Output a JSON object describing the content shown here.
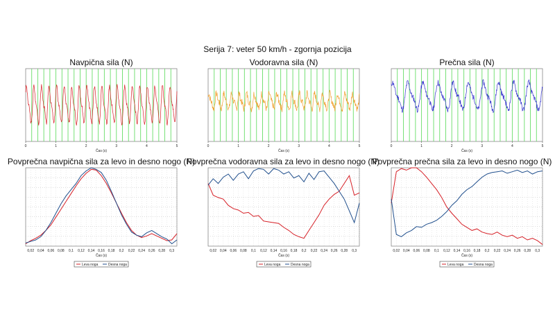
{
  "page": {
    "title": "Serija 7: veter 50 km/h - zgornja pozicija"
  },
  "colors": {
    "red": "#d61f26",
    "orange": "#f0a030",
    "blue": "#3333cc",
    "navy": "#1f4e8c",
    "green_grid": "#66dd66"
  },
  "chart_data": [
    {
      "id": "top1",
      "type": "line",
      "title": "Navpična sila (N)",
      "xlabel": "Čas (s)",
      "xlim": [
        0,
        5
      ],
      "xticks": [
        "0",
        "1",
        "2",
        "3",
        "4",
        "5"
      ],
      "grid": "vertical-green",
      "series": [
        {
          "color": "#d61f26",
          "signal": {
            "offset": 0.5,
            "amp": 0.22,
            "cycles": 20,
            "noise": 0.03,
            "seed": 3
          }
        }
      ]
    },
    {
      "id": "top2",
      "type": "line",
      "title": "Vodoravna sila (N)",
      "xlabel": "Čas (s)",
      "xlim": [
        0,
        5
      ],
      "xticks": [
        "0",
        "1",
        "2",
        "3",
        "4",
        "5"
      ],
      "grid": "vertical-green",
      "series": [
        {
          "color": "#f0a030",
          "signal": {
            "offset": 0.55,
            "amp": 0.09,
            "cycles": 20,
            "noise": 0.05,
            "seed": 7
          }
        }
      ]
    },
    {
      "id": "top3",
      "type": "line",
      "title": "Prečna sila (N)",
      "xlabel": "Čas (s)",
      "xlim": [
        0,
        5
      ],
      "xticks": [
        "0",
        "1",
        "2",
        "3",
        "4",
        "5"
      ],
      "grid": "vertical-green",
      "series": [
        {
          "color": "#3333cc",
          "signal": {
            "offset": 0.62,
            "amp": 0.16,
            "cycles": 10,
            "noise": 0.04,
            "seed": 11
          }
        }
      ]
    },
    {
      "id": "bot1",
      "type": "line",
      "title": "Povprečna navpična sila za levo in desno nogo (N)",
      "xlabel": "Čas (s)",
      "xlim": [
        0.01,
        0.31
      ],
      "xticks": [
        "0,02",
        "0,04",
        "0,06",
        "0,08",
        "0,1",
        "0,12",
        "0,14",
        "0,16",
        "0,18",
        "0,2",
        "0,22",
        "0,24",
        "0,26",
        "0,28",
        "0,3"
      ],
      "grid": "dotted",
      "legend": [
        "Leva noga",
        "Desna noga"
      ],
      "x": [
        0.01,
        0.02,
        0.03,
        0.04,
        0.05,
        0.06,
        0.07,
        0.08,
        0.09,
        0.1,
        0.11,
        0.12,
        0.13,
        0.14,
        0.15,
        0.16,
        0.17,
        0.18,
        0.19,
        0.2,
        0.21,
        0.22,
        0.23,
        0.24,
        0.25,
        0.26,
        0.27,
        0.28,
        0.29,
        0.3,
        0.31
      ],
      "series": [
        {
          "name": "Leva noga",
          "color": "#d61f26",
          "values": [
            0.03,
            0.07,
            0.1,
            0.14,
            0.2,
            0.27,
            0.37,
            0.47,
            0.57,
            0.67,
            0.77,
            0.86,
            0.93,
            0.98,
            0.97,
            0.9,
            0.8,
            0.68,
            0.55,
            0.42,
            0.3,
            0.2,
            0.14,
            0.11,
            0.13,
            0.16,
            0.13,
            0.1,
            0.07,
            0.08,
            0.16
          ]
        },
        {
          "name": "Desna noga",
          "color": "#1f4e8c",
          "values": [
            0.04,
            0.06,
            0.08,
            0.12,
            0.2,
            0.3,
            0.42,
            0.54,
            0.64,
            0.72,
            0.8,
            0.9,
            0.96,
            1.0,
            0.98,
            0.94,
            0.84,
            0.7,
            0.55,
            0.4,
            0.28,
            0.18,
            0.14,
            0.12,
            0.17,
            0.2,
            0.16,
            0.12,
            0.09,
            0.03,
            0.08
          ]
        }
      ]
    },
    {
      "id": "bot2",
      "type": "line",
      "title": "Povprečna vodoravna sila za levo in desno nogo (N)",
      "xlabel": "Čas (s)",
      "xlim": [
        0.01,
        0.31
      ],
      "xticks": [
        "0,02",
        "0,04",
        "0,06",
        "0,08",
        "0,1",
        "0,12",
        "0,14",
        "0,16",
        "0,18",
        "0,2",
        "0,22",
        "0,24",
        "0,26",
        "0,28",
        "0,3"
      ],
      "grid": "dotted",
      "legend": [
        "Leva noga",
        "Desna noga"
      ],
      "x": [
        0.01,
        0.02,
        0.03,
        0.04,
        0.05,
        0.06,
        0.07,
        0.08,
        0.09,
        0.1,
        0.11,
        0.12,
        0.13,
        0.14,
        0.15,
        0.16,
        0.17,
        0.18,
        0.19,
        0.2,
        0.21,
        0.22,
        0.23,
        0.24,
        0.25,
        0.26,
        0.27,
        0.28,
        0.29,
        0.3,
        0.31
      ],
      "series": [
        {
          "name": "Leva noga",
          "color": "#d61f26",
          "values": [
            0.8,
            0.65,
            0.62,
            0.6,
            0.52,
            0.48,
            0.46,
            0.42,
            0.43,
            0.38,
            0.39,
            0.32,
            0.31,
            0.3,
            0.29,
            0.24,
            0.2,
            0.15,
            0.12,
            0.1,
            0.2,
            0.3,
            0.4,
            0.52,
            0.6,
            0.66,
            0.7,
            0.8,
            0.9,
            0.65,
            0.68
          ]
        },
        {
          "name": "Desna noga",
          "color": "#1f4e8c",
          "values": [
            0.78,
            0.86,
            0.8,
            0.88,
            0.92,
            0.84,
            0.92,
            0.95,
            0.86,
            0.96,
            0.99,
            0.98,
            0.92,
            0.99,
            0.97,
            0.92,
            0.95,
            0.87,
            0.9,
            0.82,
            0.93,
            0.85,
            0.95,
            0.96,
            0.88,
            0.8,
            0.7,
            0.6,
            0.45,
            0.3,
            0.55
          ]
        }
      ]
    },
    {
      "id": "bot3",
      "type": "line",
      "title": "Povprečna prečna sila za levo in desno nogo (N)",
      "xlabel": "Čas (s)",
      "xlim": [
        0.01,
        0.31
      ],
      "xticks": [
        "0,02",
        "0,04",
        "0,06",
        "0,08",
        "0,1",
        "0,12",
        "0,14",
        "0,16",
        "0,18",
        "0,2",
        "0,22",
        "0,24",
        "0,26",
        "0,28",
        "0,3"
      ],
      "grid": "dotted",
      "legend": [
        "Leva noga",
        "Desna noga"
      ],
      "x": [
        0.01,
        0.02,
        0.03,
        0.04,
        0.05,
        0.06,
        0.07,
        0.08,
        0.09,
        0.1,
        0.11,
        0.12,
        0.13,
        0.14,
        0.15,
        0.16,
        0.17,
        0.18,
        0.19,
        0.2,
        0.21,
        0.22,
        0.23,
        0.24,
        0.25,
        0.26,
        0.27,
        0.28,
        0.29,
        0.3,
        0.31
      ],
      "series": [
        {
          "name": "Leva noga",
          "color": "#d61f26",
          "values": [
            0.55,
            0.95,
            0.99,
            0.97,
            1.0,
            1.0,
            0.95,
            0.88,
            0.8,
            0.72,
            0.62,
            0.5,
            0.42,
            0.35,
            0.28,
            0.24,
            0.2,
            0.22,
            0.18,
            0.16,
            0.15,
            0.18,
            0.14,
            0.12,
            0.14,
            0.1,
            0.12,
            0.08,
            0.1,
            0.07,
            0.02
          ]
        },
        {
          "name": "Desna noga",
          "color": "#1f4e8c",
          "values": [
            0.6,
            0.15,
            0.12,
            0.17,
            0.2,
            0.25,
            0.24,
            0.28,
            0.3,
            0.33,
            0.38,
            0.44,
            0.52,
            0.58,
            0.66,
            0.72,
            0.76,
            0.82,
            0.88,
            0.92,
            0.94,
            0.95,
            0.96,
            0.93,
            0.95,
            0.97,
            0.94,
            0.96,
            0.92,
            0.95,
            0.96
          ]
        }
      ]
    }
  ]
}
